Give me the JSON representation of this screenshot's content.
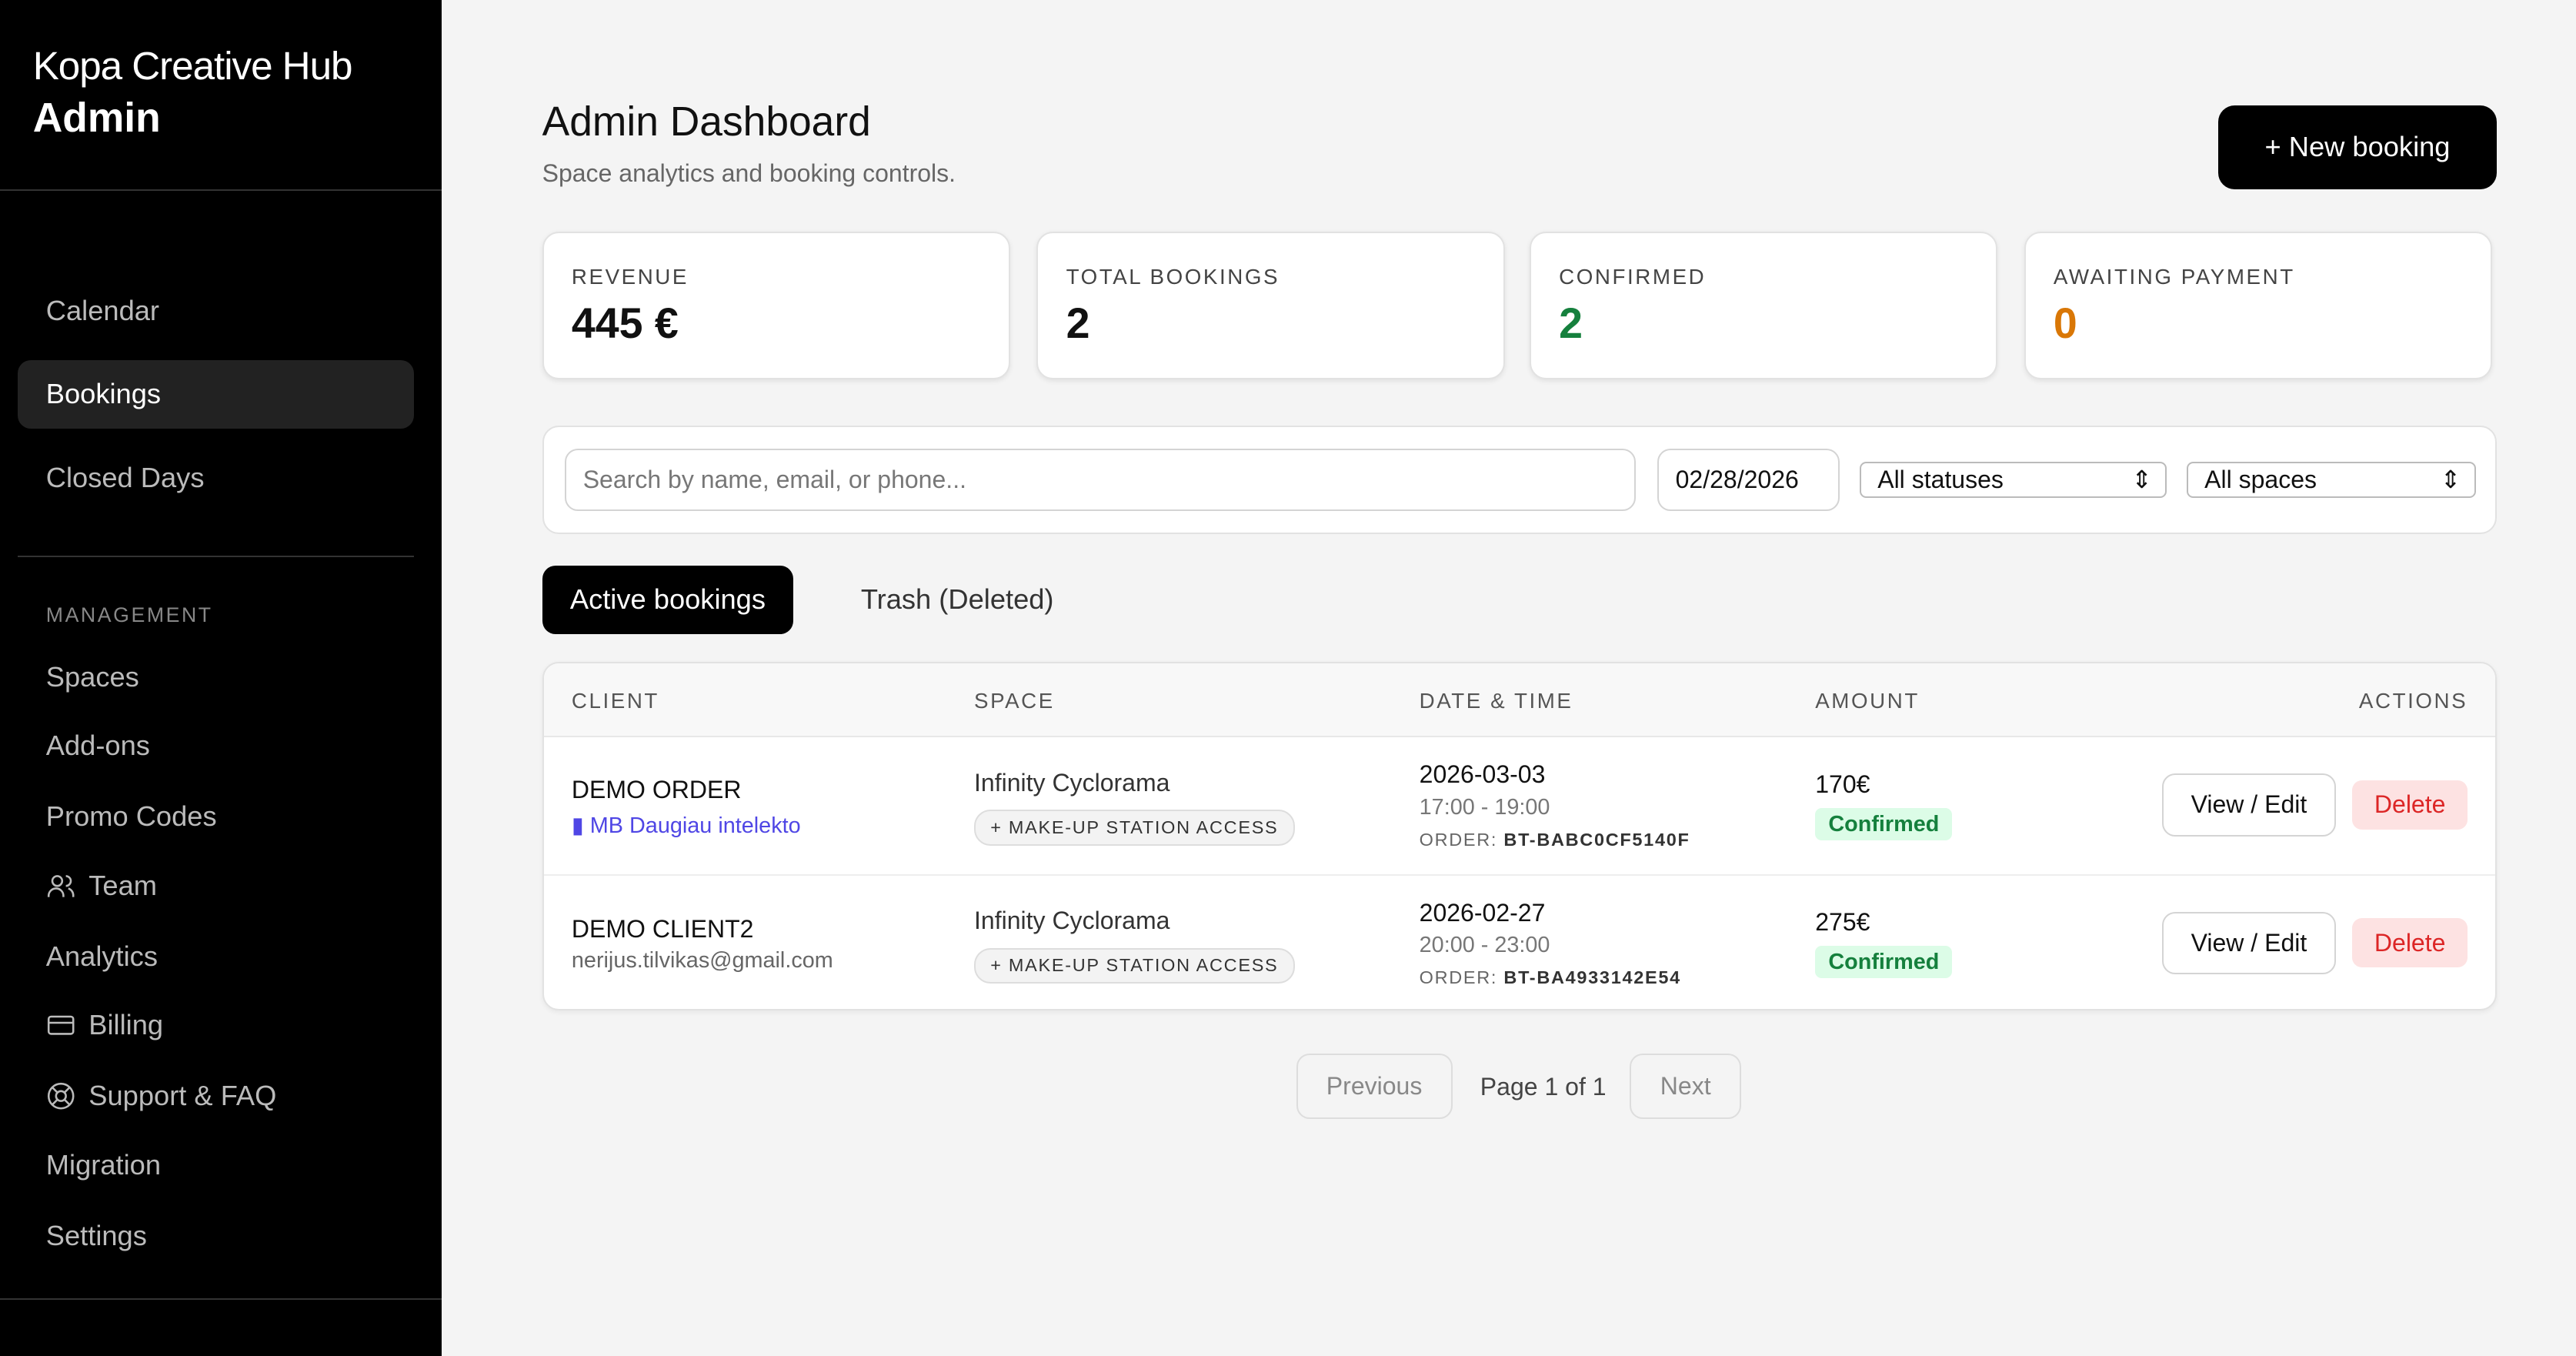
{
  "sidebar": {
    "brand_line1": "Kopa Creative Hub",
    "brand_line2": "Admin",
    "items": [
      {
        "label": "Calendar"
      },
      {
        "label": "Bookings",
        "active": true
      },
      {
        "label": "Closed Days"
      }
    ],
    "section_label": "MANAGEMENT",
    "management": [
      {
        "label": "Spaces"
      },
      {
        "label": "Add-ons"
      },
      {
        "label": "Promo Codes"
      },
      {
        "label": "Team",
        "icon": "users-icon"
      },
      {
        "label": "Analytics"
      },
      {
        "label": "Billing",
        "icon": "credit-card-icon"
      },
      {
        "label": "Support & FAQ",
        "icon": "lifebuoy-icon"
      },
      {
        "label": "Migration"
      },
      {
        "label": "Settings"
      }
    ]
  },
  "header": {
    "title": "Admin Dashboard",
    "subtitle": "Space analytics and booking controls.",
    "new_booking": "+ New booking"
  },
  "stats": [
    {
      "label": "REVENUE",
      "value": "445 €",
      "color": "#111111"
    },
    {
      "label": "TOTAL BOOKINGS",
      "value": "2",
      "color": "#111111"
    },
    {
      "label": "CONFIRMED",
      "value": "2",
      "color": "#15803d"
    },
    {
      "label": "AWAITING PAYMENT",
      "value": "0",
      "color": "#d97706"
    }
  ],
  "filters": {
    "search_placeholder": "Search by name, email, or phone...",
    "date": "02/28/2026",
    "status": "All statuses",
    "space": "All spaces"
  },
  "tabs": {
    "active": "Active bookings",
    "trash": "Trash (Deleted)"
  },
  "table": {
    "headers": {
      "client": "CLIENT",
      "space": "SPACE",
      "datetime": "DATE & TIME",
      "amount": "AMOUNT",
      "actions": "ACTIONS"
    },
    "rows": [
      {
        "client": "DEMO ORDER",
        "sub": "MB Daugiau intelekto",
        "sub_is_link": true,
        "space": "Infinity Cyclorama",
        "addon": "+ MAKE-UP STATION ACCESS",
        "date": "2026-03-03",
        "time": "17:00 - 19:00",
        "order_label": "ORDER:",
        "order": "BT-BABC0CF5140F",
        "amount": "170€",
        "status": "Confirmed",
        "view": "View / Edit",
        "delete": "Delete"
      },
      {
        "client": "DEMO CLIENT2",
        "sub": "nerijus.tilvikas@gmail.com",
        "sub_is_link": false,
        "space": "Infinity Cyclorama",
        "addon": "+ MAKE-UP STATION ACCESS",
        "date": "2026-02-27",
        "time": "20:00 - 23:00",
        "order_label": "ORDER:",
        "order": "BT-BA4933142E54",
        "amount": "275€",
        "status": "Confirmed",
        "view": "View / Edit",
        "delete": "Delete"
      }
    ]
  },
  "pagination": {
    "previous": "Previous",
    "page": "Page 1 of 1",
    "next": "Next"
  }
}
